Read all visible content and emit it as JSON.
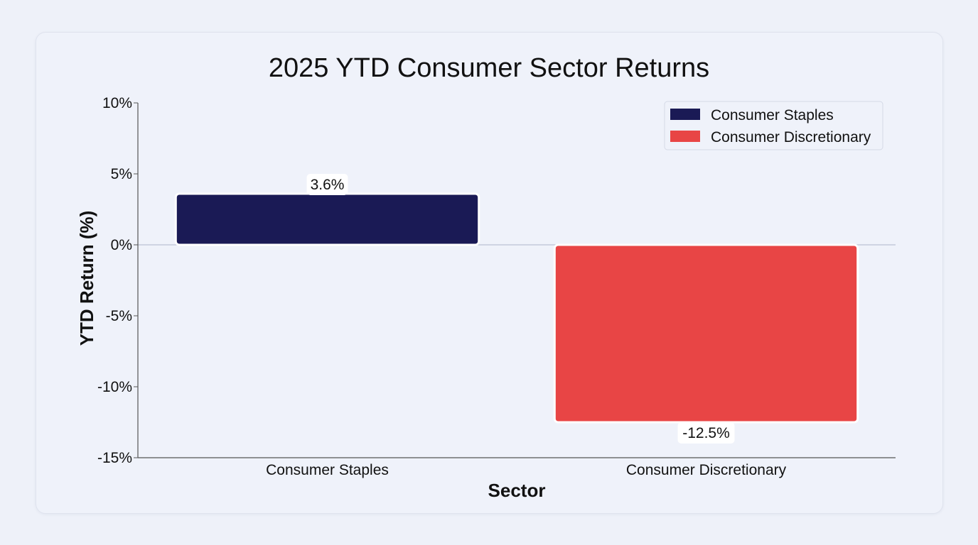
{
  "chart_data": {
    "type": "bar",
    "title": "2025 YTD Consumer Sector Returns",
    "xlabel": "Sector",
    "ylabel": "YTD Return (%)",
    "categories": [
      "Consumer Staples",
      "Consumer Discretionary"
    ],
    "values": [
      3.6,
      -12.5
    ],
    "data_labels": [
      "3.6%",
      "-12.5%"
    ],
    "ylim": [
      -15,
      10
    ],
    "yticks": [
      10,
      5,
      0,
      -5,
      -10,
      -15
    ],
    "ytick_labels": [
      "10%",
      "5%",
      "0%",
      "-5%",
      "-10%",
      "-15%"
    ],
    "grid": false,
    "zero_line": true,
    "legend": {
      "position": "top-right",
      "entries": [
        "Consumer Staples",
        "Consumer Discretionary"
      ]
    },
    "colors": [
      "#1a1a55",
      "#e84545"
    ]
  }
}
